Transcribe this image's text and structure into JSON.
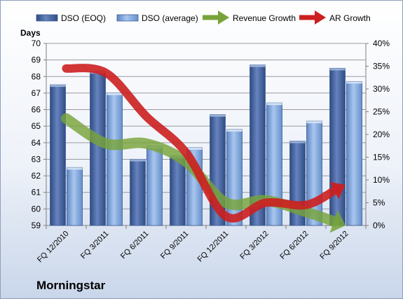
{
  "brand": "Morningstar",
  "chart_data": {
    "type": "bar",
    "categories": [
      "FQ 12/2010",
      "FQ 3/2011",
      "FQ 6/2011",
      "FQ 9/2011",
      "FQ 12/2011",
      "FQ 3/2012",
      "FQ 6/2012",
      "FQ 9/2012"
    ],
    "series": [
      {
        "name": "DSO (EOQ)",
        "kind": "bar",
        "axis": "left",
        "values": [
          67.5,
          68.3,
          63.0,
          63.2,
          65.7,
          68.7,
          64.1,
          68.5
        ]
      },
      {
        "name": "DSO (average)",
        "kind": "bar",
        "axis": "left",
        "values": [
          62.5,
          67.0,
          63.8,
          63.7,
          64.8,
          66.4,
          65.3,
          67.7
        ]
      },
      {
        "name": "Revenue Growth",
        "kind": "line",
        "axis": "right",
        "values": [
          23.5,
          18.0,
          18.0,
          14.0,
          5.0,
          5.5,
          3.0,
          0.3
        ]
      },
      {
        "name": "AR Growth",
        "kind": "line",
        "axis": "right",
        "values": [
          34.5,
          33.5,
          24.0,
          16.0,
          2.0,
          5.0,
          4.5,
          8.5
        ]
      }
    ],
    "ylabel": "Days",
    "ylim": [
      59,
      70
    ],
    "yticks": [
      "59",
      "60",
      "61",
      "62",
      "63",
      "64",
      "65",
      "66",
      "67",
      "68",
      "69",
      "70"
    ],
    "y2lim": [
      0,
      40
    ],
    "y2ticks": [
      "0%",
      "5%",
      "10%",
      "15%",
      "20%",
      "25%",
      "30%",
      "35%",
      "40%"
    ],
    "grid": true,
    "legend": "top",
    "colors": {
      "DSO (EOQ)": "#4f6ea8",
      "DSO (average)": "#7fa6dc",
      "Revenue Growth": "#77a33a",
      "AR Growth": "#cc1f1f"
    }
  }
}
